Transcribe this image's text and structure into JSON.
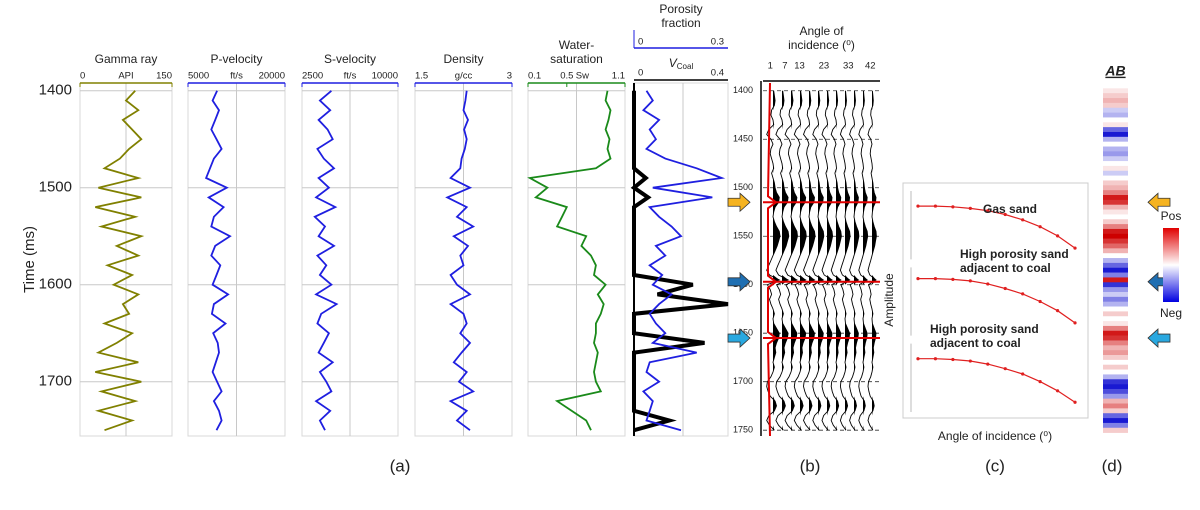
{
  "chart_data": [
    {
      "type": "log",
      "title_lines": [
        "Gamma ray"
      ],
      "unit": "API",
      "xlim": [
        0,
        150
      ],
      "xticks": [
        0,
        150
      ],
      "color": "#808000",
      "ylabel": "Time (ms)",
      "ylim": [
        1392,
        1756
      ],
      "yticks": [
        1400,
        1500,
        1600,
        1700
      ],
      "y": [
        1400,
        1410,
        1420,
        1430,
        1440,
        1450,
        1460,
        1470,
        1480,
        1490,
        1500,
        1510,
        1520,
        1530,
        1540,
        1550,
        1560,
        1570,
        1580,
        1590,
        1600,
        1610,
        1620,
        1630,
        1640,
        1650,
        1660,
        1670,
        1680,
        1690,
        1700,
        1710,
        1720,
        1730,
        1740,
        1750
      ],
      "values": [
        90,
        75,
        95,
        70,
        85,
        100,
        80,
        65,
        40,
        95,
        30,
        100,
        25,
        90,
        35,
        100,
        60,
        95,
        45,
        85,
        55,
        95,
        70,
        80,
        40,
        85,
        60,
        30,
        95,
        25,
        100,
        35,
        90,
        30,
        85,
        40
      ]
    },
    {
      "type": "log",
      "title_lines": [
        "P-velocity"
      ],
      "unit": "ft/s",
      "xlim": [
        5000,
        20000
      ],
      "xticks": [
        5000,
        20000
      ],
      "color": "#1f1fe0",
      "ylim": [
        1392,
        1756
      ],
      "yticks": [
        1400,
        1500,
        1600,
        1700
      ],
      "y": [
        1400,
        1410,
        1420,
        1430,
        1440,
        1450,
        1460,
        1470,
        1480,
        1490,
        1500,
        1510,
        1520,
        1530,
        1540,
        1550,
        1560,
        1570,
        1580,
        1590,
        1600,
        1610,
        1620,
        1630,
        1640,
        1650,
        1660,
        1670,
        1680,
        1690,
        1700,
        1710,
        1720,
        1730,
        1740,
        1750
      ],
      "values": [
        9500,
        8800,
        9800,
        9200,
        8600,
        9400,
        10200,
        9000,
        8400,
        7800,
        11000,
        8200,
        10500,
        9000,
        8600,
        11500,
        9200,
        8600,
        10000,
        9400,
        8800,
        11200,
        9000,
        8700,
        10800,
        8900,
        9600,
        9800,
        9300,
        8800,
        9500,
        10200,
        9000,
        9800,
        10200,
        9400
      ]
    },
    {
      "type": "log",
      "title_lines": [
        "S-velocity"
      ],
      "unit": "ft/s",
      "xlim": [
        2500,
        10000
      ],
      "xticks": [
        2500,
        10000
      ],
      "color": "#1f1fe0",
      "ylim": [
        1392,
        1756
      ],
      "yticks": [
        1400,
        1500,
        1600,
        1700
      ],
      "y": [
        1400,
        1410,
        1420,
        1430,
        1440,
        1450,
        1460,
        1470,
        1480,
        1490,
        1500,
        1510,
        1520,
        1530,
        1540,
        1550,
        1560,
        1570,
        1580,
        1590,
        1600,
        1610,
        1620,
        1630,
        1640,
        1650,
        1660,
        1670,
        1680,
        1690,
        1700,
        1710,
        1720,
        1730,
        1740,
        1750
      ],
      "values": [
        4800,
        3900,
        4700,
        3800,
        4500,
        4900,
        3700,
        4200,
        5000,
        3800,
        4600,
        3600,
        5100,
        3500,
        4300,
        3800,
        5000,
        3700,
        4400,
        3900,
        4800,
        3600,
        5200,
        4000,
        3700,
        4600,
        4200,
        3800,
        4900,
        3900,
        4400,
        4800,
        3600,
        4700,
        3900,
        4300
      ]
    },
    {
      "type": "log",
      "title_lines": [
        "Density"
      ],
      "unit": "g/cc",
      "xlim": [
        1.5,
        3
      ],
      "xticks": [
        1.5,
        3
      ],
      "color": "#1f1fe0",
      "ylim": [
        1392,
        1756
      ],
      "yticks": [
        1400,
        1500,
        1600,
        1700
      ],
      "y": [
        1400,
        1410,
        1420,
        1430,
        1440,
        1450,
        1460,
        1470,
        1480,
        1490,
        1500,
        1510,
        1520,
        1530,
        1540,
        1550,
        1560,
        1570,
        1580,
        1590,
        1600,
        1610,
        1620,
        1630,
        1640,
        1650,
        1660,
        1670,
        1680,
        1690,
        1700,
        1710,
        1720,
        1730,
        1740,
        1750
      ],
      "values": [
        2.3,
        2.28,
        2.25,
        2.32,
        2.26,
        2.3,
        2.27,
        2.22,
        2.2,
        2.05,
        2.35,
        2.0,
        2.3,
        2.15,
        2.4,
        2.1,
        2.32,
        2.2,
        2.25,
        2.05,
        2.15,
        2.35,
        2.05,
        2.25,
        2.3,
        2.2,
        2.35,
        2.22,
        2.1,
        2.3,
        2.18,
        2.4,
        2.05,
        2.3,
        2.15,
        2.35
      ]
    },
    {
      "type": "log",
      "title_lines": [
        "Water-",
        "saturation"
      ],
      "unit": "Sw",
      "xlim": [
        0.1,
        1.1
      ],
      "xticks": [
        0.1,
        0.5,
        1.1
      ],
      "color": "#1a8a1a",
      "ylim": [
        1392,
        1756
      ],
      "yticks": [
        1400,
        1500,
        1600,
        1700
      ],
      "y": [
        1400,
        1410,
        1420,
        1430,
        1440,
        1450,
        1460,
        1470,
        1480,
        1490,
        1500,
        1510,
        1520,
        1530,
        1540,
        1550,
        1560,
        1570,
        1580,
        1590,
        1600,
        1610,
        1620,
        1630,
        1640,
        1650,
        1660,
        1670,
        1680,
        1690,
        1700,
        1710,
        1720,
        1730,
        1740,
        1750
      ],
      "values": [
        0.92,
        0.9,
        0.95,
        0.93,
        0.9,
        0.94,
        0.92,
        0.95,
        0.8,
        0.12,
        0.3,
        0.18,
        0.5,
        0.45,
        0.4,
        0.7,
        0.65,
        0.75,
        0.8,
        0.78,
        0.9,
        0.82,
        0.88,
        0.85,
        0.8,
        0.8,
        0.78,
        0.82,
        0.8,
        0.78,
        0.8,
        0.85,
        0.4,
        0.55,
        0.7,
        0.75
      ]
    },
    {
      "type": "log2",
      "title_lines": [
        "Porosity",
        "fraction"
      ],
      "xlim": [
        0,
        0.3
      ],
      "xticks": [
        0,
        0.3
      ],
      "color": "#1f1fe0",
      "x2_label": [
        "V",
        "Coal"
      ],
      "x2lim": [
        0,
        0.4
      ],
      "x2ticks": [
        0,
        0.4
      ],
      "color2": "#000000",
      "ylim": [
        1392,
        1756
      ],
      "y": [
        1400,
        1410,
        1420,
        1430,
        1440,
        1450,
        1460,
        1470,
        1480,
        1490,
        1500,
        1510,
        1520,
        1530,
        1540,
        1550,
        1560,
        1570,
        1580,
        1590,
        1600,
        1610,
        1620,
        1630,
        1640,
        1650,
        1660,
        1670,
        1680,
        1690,
        1700,
        1710,
        1720,
        1730,
        1740,
        1750
      ],
      "values": [
        0.04,
        0.06,
        0.03,
        0.08,
        0.05,
        0.07,
        0.04,
        0.1,
        0.2,
        0.28,
        0.06,
        0.25,
        0.05,
        0.08,
        0.12,
        0.15,
        0.07,
        0.1,
        0.05,
        0.09,
        0.06,
        0.12,
        0.08,
        0.05,
        0.07,
        0.1,
        0.06,
        0.2,
        0.05,
        0.04,
        0.08,
        0.03,
        0.06,
        0.05,
        0.04,
        0.15
      ],
      "values2": [
        0,
        0,
        0,
        0,
        0,
        0,
        0,
        0,
        0,
        0.05,
        0,
        0.06,
        0,
        0,
        0,
        0,
        0,
        0,
        0,
        0,
        0.25,
        0.1,
        0.4,
        0,
        0,
        0,
        0.3,
        0,
        0,
        0,
        0,
        0,
        0,
        0,
        0.15,
        0
      ]
    },
    {
      "type": "gather",
      "title_lines": [
        "Angle of",
        "incidence (⁰)"
      ],
      "angle_ticks": [
        1,
        7,
        13,
        23,
        33,
        42
      ],
      "xlim": [
        -2,
        46
      ],
      "ylim": [
        1392,
        1756
      ],
      "yticks": [
        1400,
        1450,
        1500,
        1550,
        1600,
        1650,
        1700,
        1750
      ],
      "events": [
        {
          "time": 1515,
          "color": "#f5b320"
        },
        {
          "time": 1597,
          "color": "#1f6fb2"
        },
        {
          "time": 1655,
          "color": "#29a8e0"
        }
      ]
    },
    {
      "type": "avo",
      "xlabel": "Angle of incidence (⁰)",
      "ylabel": "Amplitude",
      "x": [
        0,
        5,
        10,
        15,
        20,
        25,
        30,
        35,
        40,
        45
      ],
      "xlim": [
        -2,
        47
      ],
      "series": [
        {
          "name_lines": [
            "Gas sand"
          ],
          "color": "#e02020",
          "ylim": [
            0,
            0.1
          ],
          "values": [
            0.075,
            0.075,
            0.074,
            0.072,
            0.069,
            0.064,
            0.057,
            0.048,
            0.036,
            0.02
          ]
        },
        {
          "name_lines": [
            "High porosity sand",
            "adjacent to coal"
          ],
          "color": "#e02020",
          "ylim": [
            0,
            0.1
          ],
          "values": [
            0.08,
            0.08,
            0.079,
            0.077,
            0.073,
            0.067,
            0.06,
            0.05,
            0.038,
            0.022
          ]
        },
        {
          "name_lines": [
            "High porosity sand",
            "adjacent to coal"
          ],
          "color": "#e02020",
          "ylim": [
            0,
            0.1
          ],
          "values": [
            0.075,
            0.075,
            0.074,
            0.072,
            0.068,
            0.062,
            0.055,
            0.045,
            0.033,
            0.018
          ]
        }
      ]
    },
    {
      "type": "strip",
      "title": "AB",
      "legend": {
        "pos": "Pos",
        "neg": "Neg"
      },
      "ylim": [
        1392,
        1756
      ],
      "vlim": [
        -1,
        1
      ],
      "y": [
        1400,
        1405,
        1410,
        1415,
        1420,
        1425,
        1430,
        1435,
        1440,
        1445,
        1450,
        1455,
        1460,
        1465,
        1470,
        1475,
        1480,
        1485,
        1490,
        1495,
        1500,
        1505,
        1510,
        1515,
        1520,
        1525,
        1530,
        1535,
        1540,
        1545,
        1550,
        1555,
        1560,
        1565,
        1570,
        1575,
        1580,
        1585,
        1590,
        1595,
        1600,
        1605,
        1610,
        1615,
        1620,
        1625,
        1630,
        1635,
        1640,
        1645,
        1650,
        1655,
        1660,
        1665,
        1670,
        1675,
        1680,
        1685,
        1690,
        1695,
        1700,
        1705,
        1710,
        1715,
        1720,
        1725,
        1730,
        1735,
        1740,
        1745,
        1750
      ],
      "values": [
        0.1,
        0.2,
        0.3,
        0.2,
        -0.2,
        -0.3,
        0,
        0.1,
        -0.6,
        -0.9,
        -0.3,
        0,
        -0.3,
        -0.4,
        -0.2,
        0,
        0.1,
        -0.2,
        0,
        0.2,
        0.3,
        0.5,
        0.9,
        0.8,
        0.3,
        0.1,
        0,
        0.2,
        0.5,
        0.9,
        1,
        0.8,
        0.6,
        0.3,
        0,
        -0.3,
        -0.6,
        -0.9,
        -0.5,
        0.9,
        -0.8,
        -0.4,
        -0.2,
        -0.5,
        -0.3,
        0,
        0.2,
        0,
        0.1,
        0.5,
        0.9,
        0.8,
        0.5,
        0.3,
        0.4,
        0.2,
        0,
        0.2,
        0,
        -0.3,
        -0.8,
        -0.9,
        -0.7,
        -0.4,
        0.3,
        0.5,
        0.2,
        -0.6,
        -0.9,
        -0.5,
        0.2
      ]
    }
  ],
  "panel_labels": [
    "(a)",
    "(b)",
    "(c)",
    "(d)"
  ]
}
